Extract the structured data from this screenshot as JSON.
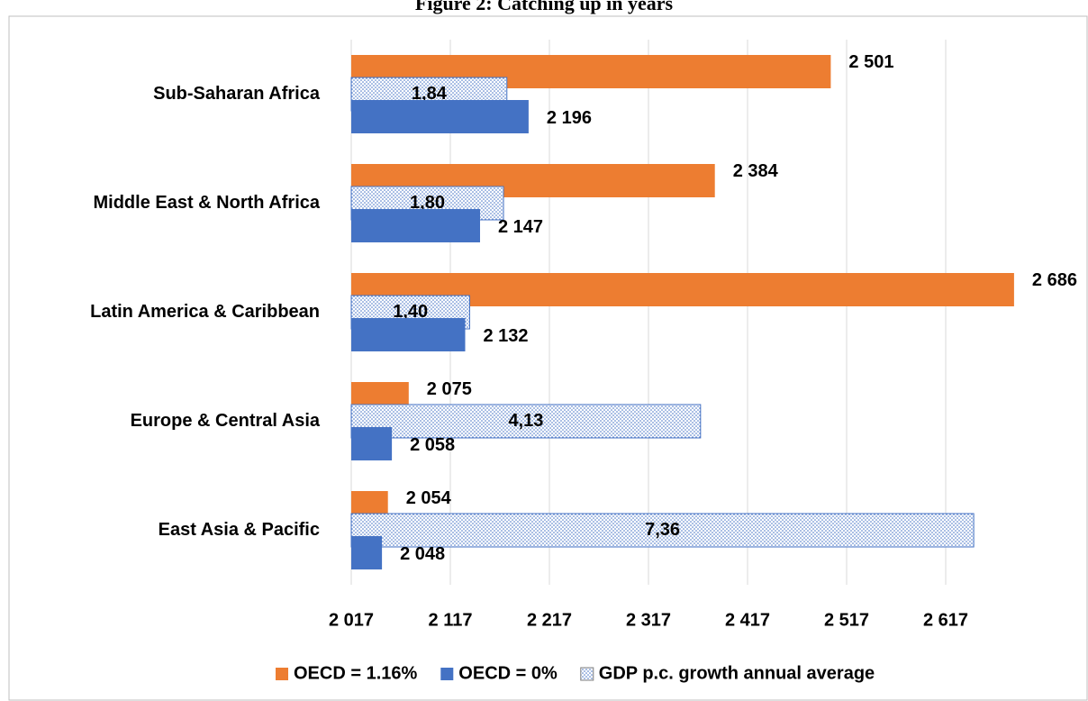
{
  "chart_data": {
    "type": "bar",
    "orientation": "horizontal",
    "title": "Figure 2: Catching up in years",
    "categories": [
      "Sub-Saharan Africa",
      "Middle East & North Africa",
      "Latin America & Caribbean",
      "Europe & Central Asia",
      "East Asia & Pacific"
    ],
    "series": [
      {
        "name": "OECD = 1.16%",
        "color": "#ED7D31",
        "values": [
          2501,
          2384,
          2686,
          2075,
          2054
        ],
        "value_labels": [
          "2 501",
          "2 384",
          "2 686",
          "2 075",
          "2 054"
        ]
      },
      {
        "name": "GDP p.c. growth annual average",
        "color": "#4472C4",
        "pattern": "dots",
        "axis": "x2",
        "values": [
          1.84,
          1.8,
          1.4,
          4.13,
          7.36
        ],
        "value_labels": [
          "1,84",
          "1,80",
          "1,40",
          "4,13",
          "7,36"
        ]
      },
      {
        "name": "OECD = 0%",
        "color": "#4472C4",
        "values": [
          2196,
          2147,
          2132,
          2058,
          2048
        ],
        "value_labels": [
          "2 196",
          "2 147",
          "2 132",
          "2 058",
          "2 048"
        ]
      }
    ],
    "legend_order": [
      0,
      2,
      1
    ],
    "xlim": [
      2017,
      2717
    ],
    "xticks": [
      {
        "value": 2017,
        "label": "2 017"
      },
      {
        "value": 2117,
        "label": "2 117"
      },
      {
        "value": 2217,
        "label": "2 217"
      },
      {
        "value": 2317,
        "label": "2 317"
      },
      {
        "value": 2417,
        "label": "2 417"
      },
      {
        "value": 2517,
        "label": "2 517"
      },
      {
        "value": 2617,
        "label": "2 617"
      }
    ],
    "x2lim": [
      0,
      8.2
    ],
    "grid": true,
    "legend": "bottom"
  }
}
